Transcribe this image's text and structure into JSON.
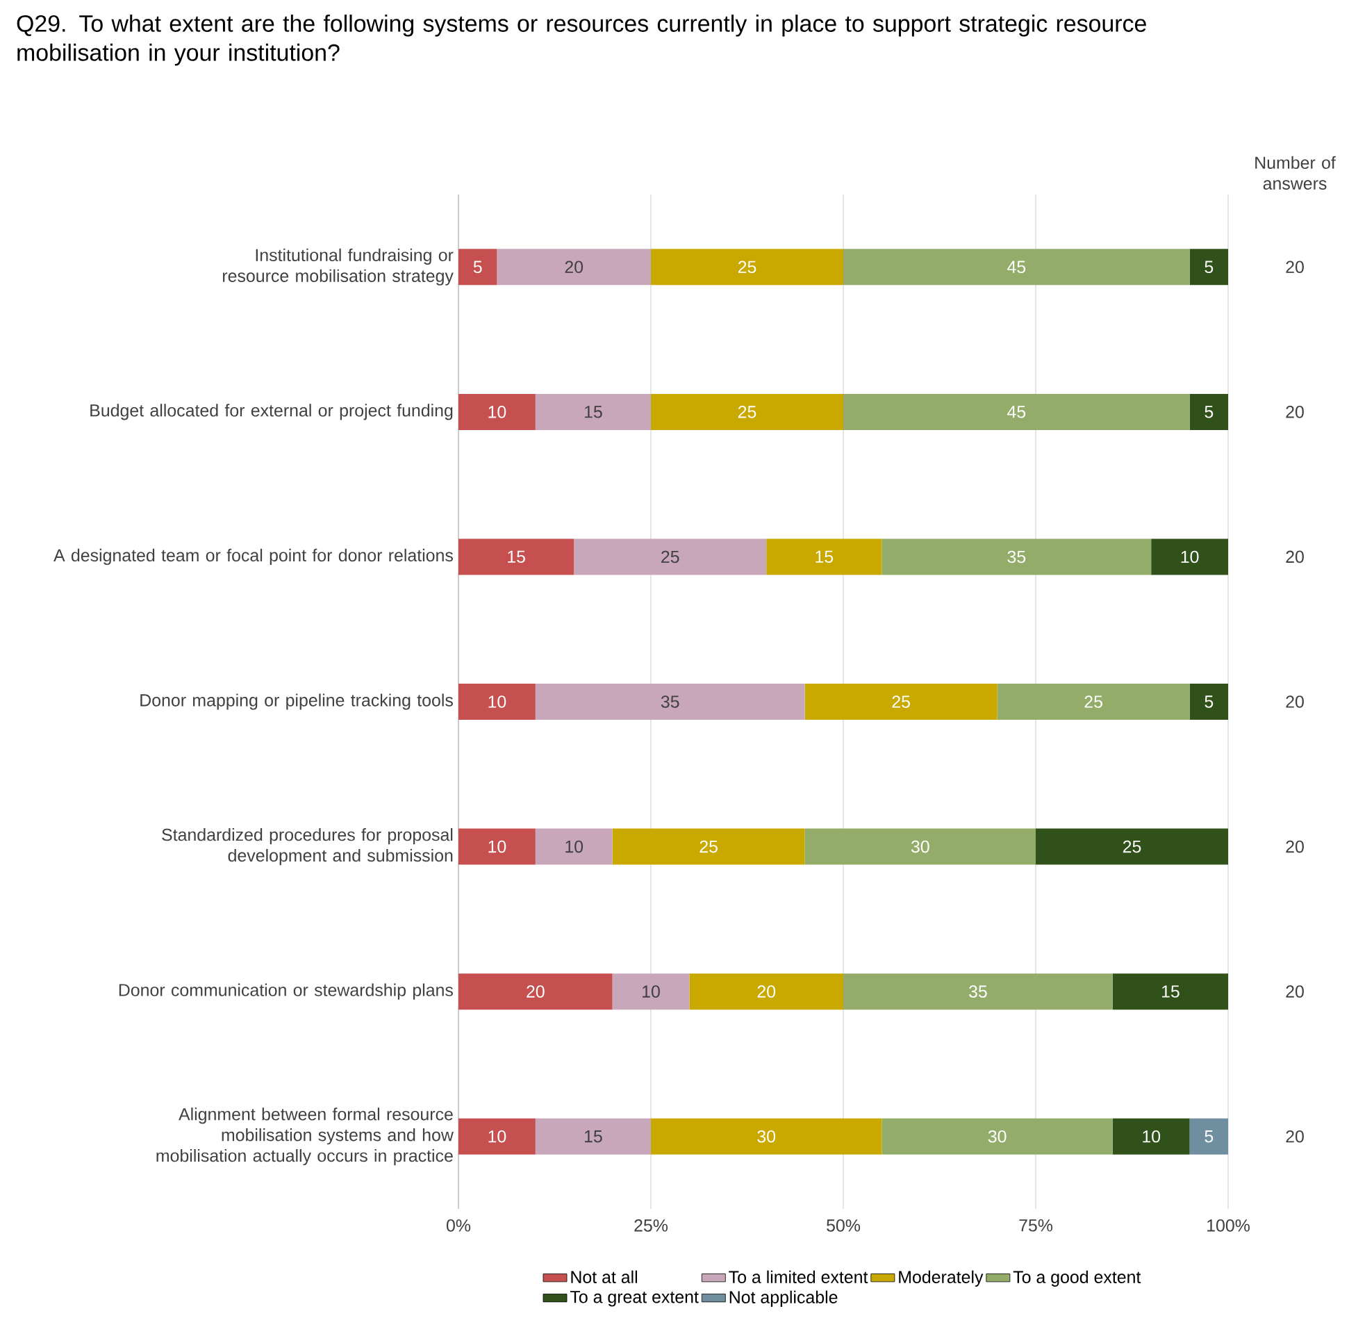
{
  "chart_data": {
    "type": "bar",
    "orientation": "horizontal",
    "stacked": true,
    "title": "Q29. To what extent are the following systems or resources currently in place to support strategic resource mobilisation in your institution?",
    "categories": [
      "Institutional fundraising or resource mobilisation strategy",
      "Budget allocated for external or project funding",
      "A designated team or focal point for donor relations",
      "Donor mapping or pipeline tracking tools",
      "Standardized procedures for proposal development and submission",
      "Donor communication or stewardship plans",
      "Alignment between formal resource mobilisation systems and how mobilisation actually occurs in practice"
    ],
    "series": [
      {
        "name": "Not at all",
        "color": "#c5504f",
        "values": [
          5,
          10,
          15,
          10,
          10,
          20,
          10
        ]
      },
      {
        "name": "To a limited extent",
        "color": "#c9a7ba",
        "values": [
          20,
          15,
          25,
          35,
          10,
          10,
          15
        ]
      },
      {
        "name": "Moderately",
        "color": "#c9a900",
        "values": [
          25,
          25,
          15,
          25,
          25,
          20,
          30
        ]
      },
      {
        "name": "To a good extent",
        "color": "#93ac69",
        "values": [
          45,
          45,
          35,
          25,
          30,
          35,
          30
        ]
      },
      {
        "name": "To a great extent",
        "color": "#30521a",
        "values": [
          5,
          5,
          10,
          5,
          25,
          15,
          10
        ]
      },
      {
        "name": "Not applicable",
        "color": "#6f8fa0",
        "values": [
          null,
          null,
          null,
          null,
          null,
          null,
          5
        ]
      }
    ],
    "xlim": [
      0,
      100
    ],
    "xticks": [
      {
        "value": 0,
        "label": "0%"
      },
      {
        "value": 25,
        "label": "25%"
      },
      {
        "value": 50,
        "label": "50%"
      },
      {
        "value": 75,
        "label": "75%"
      },
      {
        "value": 100,
        "label": "100%"
      }
    ],
    "grid": "x",
    "legend": "bottom",
    "data_labels": true,
    "annotations": [
      "Number of answers",
      "20",
      "20",
      "20",
      "20",
      "20",
      "20",
      "20"
    ]
  }
}
